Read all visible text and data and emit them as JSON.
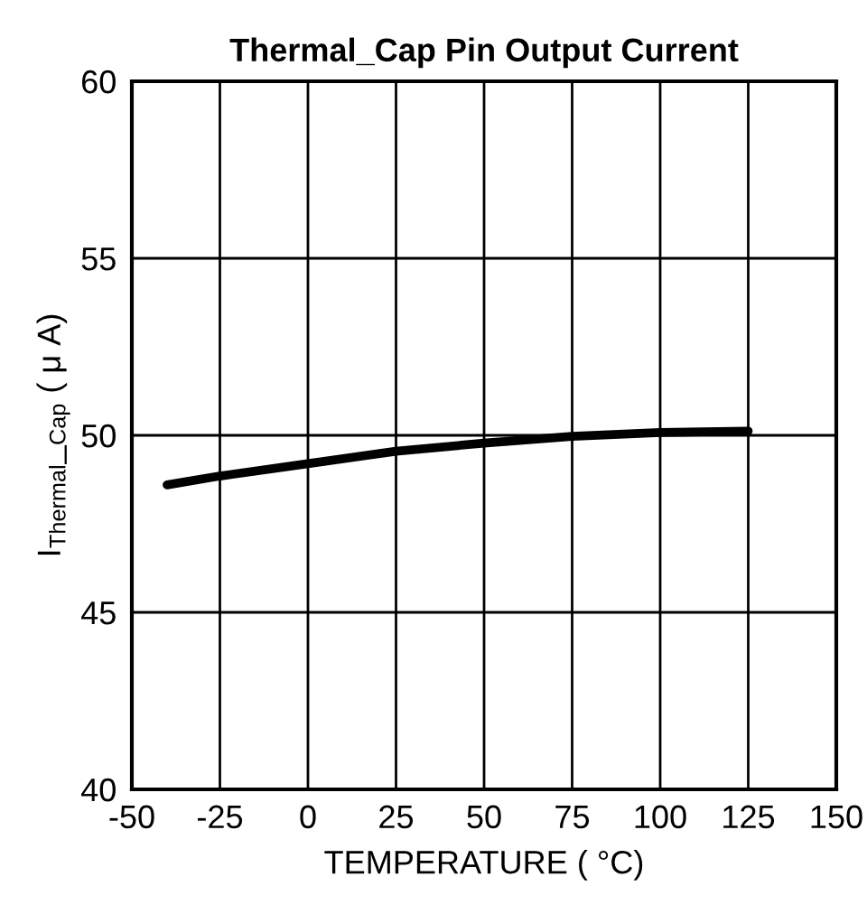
{
  "chart_data": {
    "type": "line",
    "title": "Thermal_Cap Pin Output Current",
    "xlabel": "TEMPERATURE ( °C)",
    "ylabel": "I$_{Thermal}$_$_{Cap}$ ( μ A)",
    "x": [
      -40,
      -25,
      0,
      25,
      50,
      75,
      100,
      125
    ],
    "series": [
      {
        "color": "#000000",
        "values": [
          48.6,
          48.85,
          49.2,
          49.55,
          49.78,
          49.97,
          50.08,
          50.12
        ]
      }
    ],
    "xlim": [
      -50,
      150
    ],
    "xticks": [
      -50,
      -25,
      0,
      25,
      50,
      75,
      100,
      125,
      150
    ],
    "ylim": [
      40,
      60
    ],
    "yticks": [
      40,
      45,
      50,
      55,
      60
    ],
    "grid": true,
    "marker": "none",
    "line_style": "solid"
  }
}
